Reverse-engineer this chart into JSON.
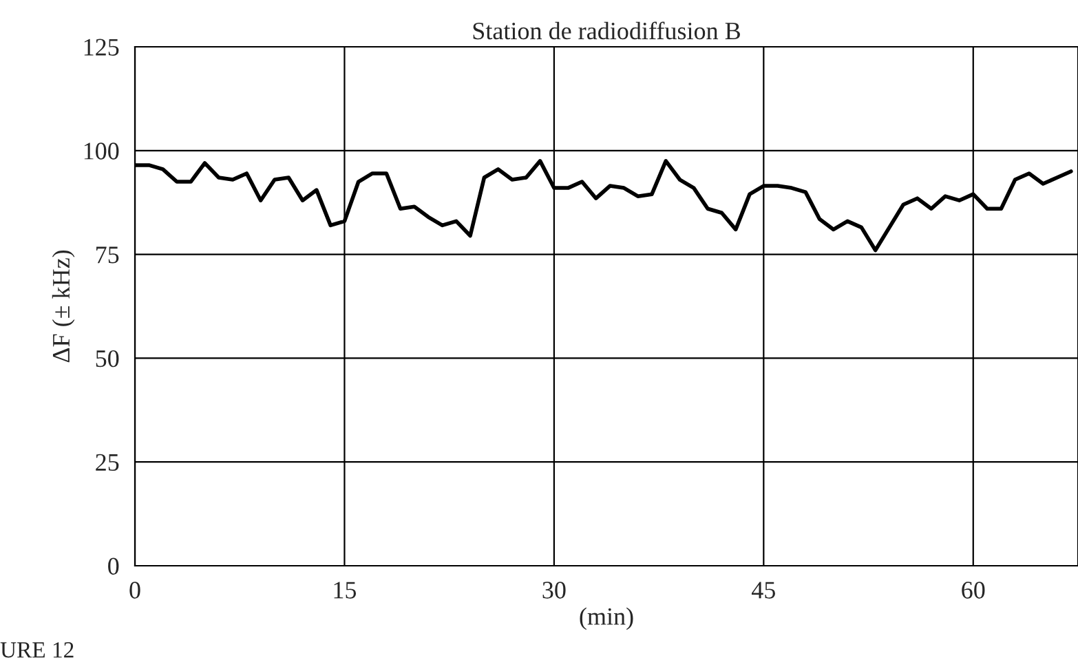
{
  "chart_data": {
    "type": "line",
    "title": "Station de radiodiffusion B",
    "xlabel": "(min)",
    "ylabel": "ΔF (± kHz)",
    "annotations": [
      "URE 12"
    ],
    "x": [
      0,
      1,
      2,
      3,
      4,
      5,
      6,
      7,
      8,
      9,
      10,
      11,
      12,
      13,
      14,
      15,
      16,
      17,
      18,
      19,
      20,
      21,
      22,
      23,
      24,
      25,
      26,
      27,
      28,
      29,
      30,
      31,
      32,
      33,
      34,
      35,
      36,
      37,
      38,
      39,
      40,
      41,
      42,
      43,
      44,
      45,
      46,
      47,
      48,
      49,
      50,
      51,
      52,
      53,
      54,
      55,
      56,
      57,
      58,
      59,
      60,
      61,
      62,
      63,
      64,
      65,
      66,
      67
    ],
    "series": [
      {
        "color": "#000000",
        "values": [
          96.5,
          96.5,
          95.5,
          92.5,
          92.5,
          97,
          93.5,
          93,
          94.5,
          88,
          93,
          93.5,
          88,
          90.5,
          82,
          83,
          92.5,
          94.5,
          94.5,
          86,
          86.5,
          84,
          82,
          83,
          79.5,
          93.5,
          95.5,
          93,
          93.5,
          97.5,
          91,
          91,
          92.5,
          88.5,
          91.5,
          91,
          89,
          89.5,
          97.5,
          93,
          91,
          86,
          85,
          81,
          89.5,
          91.5,
          91.5,
          91,
          90,
          83.5,
          81,
          83,
          81.5,
          76,
          81.5,
          87,
          88.5,
          86,
          89,
          88,
          89.5,
          86,
          86,
          93,
          94.5,
          92,
          93.5,
          95
        ]
      }
    ],
    "xlim": [
      0,
      67.5
    ],
    "xticks": [
      0,
      15,
      30,
      45,
      60
    ],
    "ylim": [
      0,
      125
    ],
    "yticks": [
      0,
      25,
      50,
      75,
      100,
      125
    ],
    "grid": true,
    "legend": false,
    "marker": "none",
    "line_style": "solid"
  }
}
